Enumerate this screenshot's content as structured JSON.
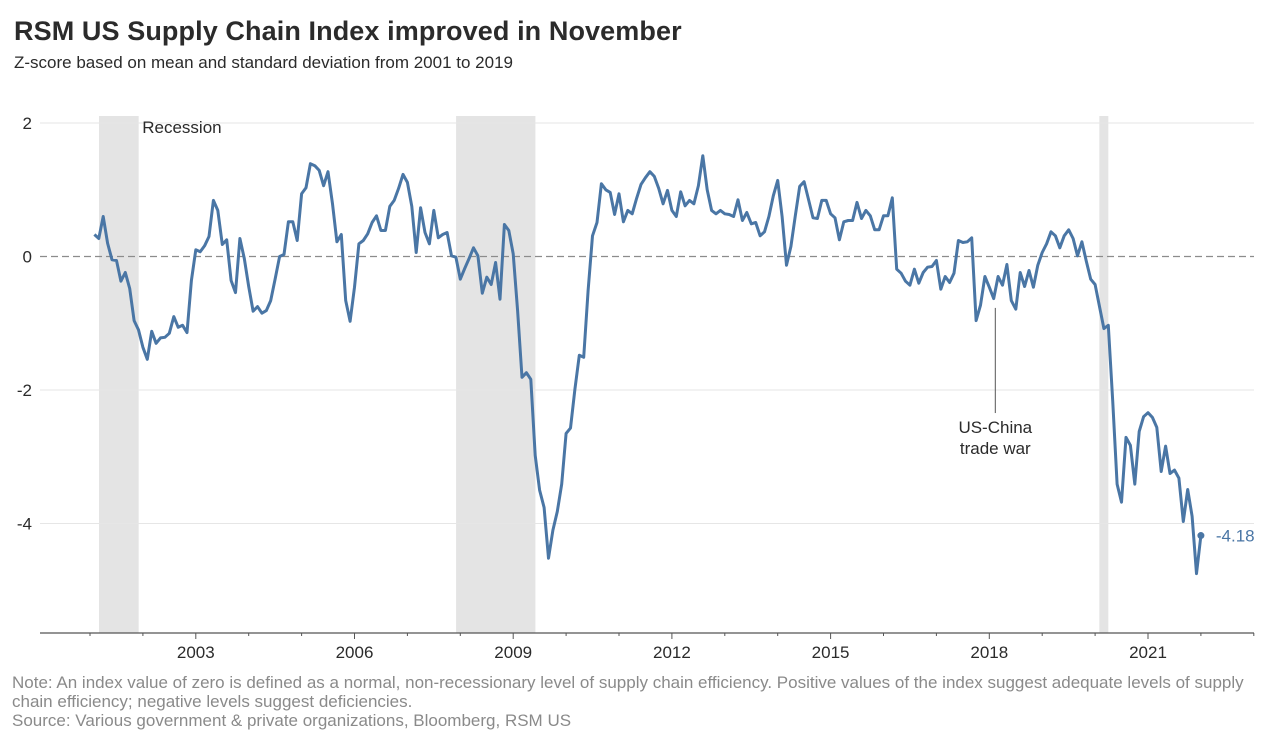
{
  "title": "RSM US Supply Chain Index improved in November",
  "subtitle": "Z-score based on mean and standard deviation from 2001 to 2019",
  "notes": {
    "note": "Note: An index value of zero is defined as a normal, non-recessionary level of supply chain efficiency. Positive values of the index suggest adequate levels of supply chain efficiency; negative levels suggest deficiencies.",
    "source": "Source: Various government & private organizations, Bloomberg, RSM US"
  },
  "colors": {
    "line": "#4a76a5",
    "recession": "#e4e4e4",
    "gridline": "#e6e6e6",
    "zero_line": "#8c8c8c",
    "axis": "#555555"
  },
  "chart_data": {
    "type": "line",
    "title": "RSM US Supply Chain Index improved in November",
    "subtitle": "Z-score based on mean and standard deviation from 2001 to 2019",
    "xlabel": "",
    "ylabel": "",
    "xlim": [
      2000.85,
      2023.8
    ],
    "ylim": [
      -5.64,
      2.0
    ],
    "x_ticks": [
      2003,
      2006,
      2009,
      2012,
      2015,
      2018,
      2021
    ],
    "x_tick_labels": [
      "2003",
      "2006",
      "2009",
      "2012",
      "2015",
      "2018",
      "2021"
    ],
    "y_ticks": [
      2,
      0,
      -2,
      -4
    ],
    "y_tick_labels": [
      "2",
      "0",
      "-2",
      "-4"
    ],
    "grid": "horizontal",
    "reference_line": {
      "value": 0,
      "style": "dashed"
    },
    "recessions": [
      {
        "start": 2001.17,
        "end": 2001.92
      },
      {
        "start": 2007.92,
        "end": 2009.42
      },
      {
        "start": 2020.08,
        "end": 2020.25
      }
    ],
    "annotations": [
      {
        "text": "Recession",
        "x": 2001.95,
        "y": 1.95
      },
      {
        "text": "US-China",
        "line2": "trade war",
        "x": 2018.0,
        "y": -0.8,
        "pointer_to": -0.8,
        "label_y": -2.3
      }
    ],
    "end_label": {
      "text": "-4.18",
      "x": 2021.83,
      "y": -4.18
    },
    "series": [
      {
        "name": "RSM US Supply Chain Index",
        "start": "2001-02",
        "frequency": "monthly",
        "values": [
          0.33,
          0.27,
          0.6,
          0.2,
          -0.05,
          -0.06,
          -0.37,
          -0.24,
          -0.48,
          -0.96,
          -1.1,
          -1.36,
          -1.54,
          -1.12,
          -1.3,
          -1.22,
          -1.21,
          -1.15,
          -0.9,
          -1.06,
          -1.03,
          -1.14,
          -0.36,
          0.1,
          0.07,
          0.16,
          0.3,
          0.84,
          0.69,
          0.18,
          0.25,
          -0.36,
          -0.54,
          0.27,
          -0.03,
          -0.45,
          -0.82,
          -0.75,
          -0.85,
          -0.81,
          -0.66,
          -0.34,
          0.0,
          0.03,
          0.52,
          0.52,
          0.24,
          0.94,
          1.03,
          1.39,
          1.36,
          1.29,
          1.06,
          1.27,
          0.79,
          0.22,
          0.33,
          -0.66,
          -0.97,
          -0.46,
          0.19,
          0.24,
          0.34,
          0.51,
          0.61,
          0.39,
          0.39,
          0.75,
          0.84,
          1.02,
          1.23,
          1.11,
          0.75,
          0.06,
          0.73,
          0.36,
          0.19,
          0.69,
          0.28,
          0.33,
          0.36,
          0.01,
          -0.01,
          -0.34,
          -0.18,
          -0.03,
          0.13,
          0.01,
          -0.55,
          -0.31,
          -0.42,
          -0.09,
          -0.64,
          0.48,
          0.39,
          0.04,
          -0.81,
          -1.81,
          -1.74,
          -1.84,
          -2.98,
          -3.5,
          -3.76,
          -4.52,
          -4.1,
          -3.82,
          -3.41,
          -2.65,
          -2.57,
          -1.99,
          -1.48,
          -1.51,
          -0.51,
          0.31,
          0.51,
          1.09,
          1.0,
          0.96,
          0.63,
          0.94,
          0.52,
          0.69,
          0.64,
          0.87,
          1.08,
          1.18,
          1.27,
          1.2,
          1.02,
          0.79,
          0.99,
          0.69,
          0.6,
          0.97,
          0.76,
          0.84,
          0.79,
          1.06,
          1.51,
          1.0,
          0.69,
          0.64,
          0.69,
          0.64,
          0.63,
          0.6,
          0.85,
          0.54,
          0.66,
          0.49,
          0.51,
          0.31,
          0.37,
          0.6,
          0.91,
          1.14,
          0.6,
          -0.13,
          0.15,
          0.61,
          1.05,
          1.12,
          0.85,
          0.58,
          0.57,
          0.84,
          0.84,
          0.64,
          0.58,
          0.25,
          0.52,
          0.54,
          0.54,
          0.81,
          0.57,
          0.69,
          0.61,
          0.4,
          0.4,
          0.61,
          0.61,
          0.88,
          -0.19,
          -0.25,
          -0.37,
          -0.43,
          -0.19,
          -0.4,
          -0.24,
          -0.16,
          -0.15,
          -0.06,
          -0.49,
          -0.3,
          -0.39,
          -0.25,
          0.24,
          0.21,
          0.22,
          0.28,
          -0.96,
          -0.73,
          -0.3,
          -0.46,
          -0.63,
          -0.3,
          -0.43,
          -0.12,
          -0.66,
          -0.79,
          -0.24,
          -0.45,
          -0.21,
          -0.46,
          -0.13,
          0.06,
          0.19,
          0.37,
          0.31,
          0.13,
          0.31,
          0.4,
          0.27,
          0.01,
          0.22,
          -0.07,
          -0.34,
          -0.42,
          -0.75,
          -1.08,
          -1.03,
          -2.16,
          -3.41,
          -3.68,
          -2.71,
          -2.83,
          -3.41,
          -2.62,
          -2.4,
          -2.34,
          -2.41,
          -2.56,
          -3.22,
          -2.84,
          -3.25,
          -3.2,
          -3.32,
          -3.97,
          -3.49,
          -3.89,
          -4.75,
          -4.18
        ]
      }
    ]
  }
}
